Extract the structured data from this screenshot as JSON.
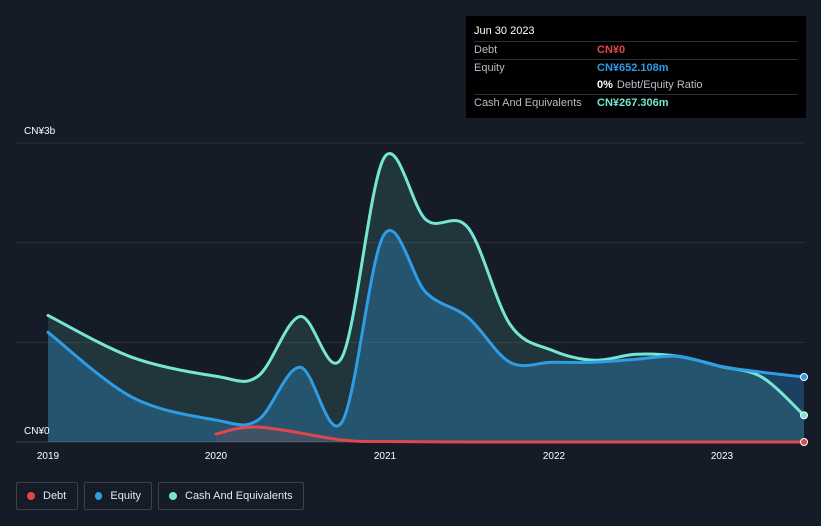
{
  "chart_data": {
    "type": "area",
    "title": "",
    "xlabel": "",
    "ylabel": "",
    "currency": "CN¥",
    "ylim": [
      0,
      3000
    ],
    "y_unit": "CN¥m",
    "y_tick_labels": [
      "CN¥3b",
      "CN¥0"
    ],
    "x_tick_labels": [
      "2019",
      "2020",
      "2021",
      "2022",
      "2023"
    ],
    "xlim": [
      2019.0,
      2023.5
    ],
    "series": [
      {
        "name": "Debt",
        "color": "#e0474c",
        "x": [
          2020.0,
          2020.25,
          2020.75,
          2021.0,
          2021.5,
          2022.0,
          2022.5,
          2023.0,
          2023.5
        ],
        "values": [
          80,
          150,
          20,
          5,
          0,
          0,
          0,
          0,
          0
        ]
      },
      {
        "name": "Equity",
        "color": "#2f9ce6",
        "x": [
          2019.0,
          2019.5,
          2020.0,
          2020.25,
          2020.5,
          2020.75,
          2021.0,
          2021.25,
          2021.5,
          2021.75,
          2022.0,
          2022.25,
          2022.5,
          2022.75,
          2023.0,
          2023.25,
          2023.5
        ],
        "values": [
          1100,
          450,
          220,
          220,
          750,
          200,
          2080,
          1500,
          1250,
          800,
          800,
          800,
          830,
          860,
          760,
          700,
          652.108
        ]
      },
      {
        "name": "Cash And Equivalents",
        "color": "#76e6d2",
        "x": [
          2019.0,
          2019.5,
          2020.0,
          2020.25,
          2020.5,
          2020.75,
          2021.0,
          2021.25,
          2021.5,
          2021.75,
          2022.0,
          2022.25,
          2022.5,
          2022.75,
          2023.0,
          2023.25,
          2023.5
        ],
        "values": [
          1270,
          850,
          660,
          660,
          1260,
          850,
          2850,
          2230,
          2150,
          1180,
          920,
          820,
          880,
          860,
          760,
          650,
          267.306
        ]
      }
    ],
    "tooltip": {
      "date": "Jun 30 2023",
      "rows": [
        {
          "label": "Debt",
          "value": "CN¥0",
          "color": "#e0474c",
          "extra": ""
        },
        {
          "label": "Equity",
          "value": "CN¥652.108m",
          "color": "#2f9ce6",
          "extra": ""
        },
        {
          "label": "",
          "value": "0%",
          "color": "#ffffff",
          "extra": "Debt/Equity Ratio"
        },
        {
          "label": "Cash And Equivalents",
          "value": "CN¥267.306m",
          "color": "#76e6d2",
          "extra": ""
        }
      ]
    },
    "legend": [
      "Debt",
      "Equity",
      "Cash And Equivalents"
    ]
  }
}
